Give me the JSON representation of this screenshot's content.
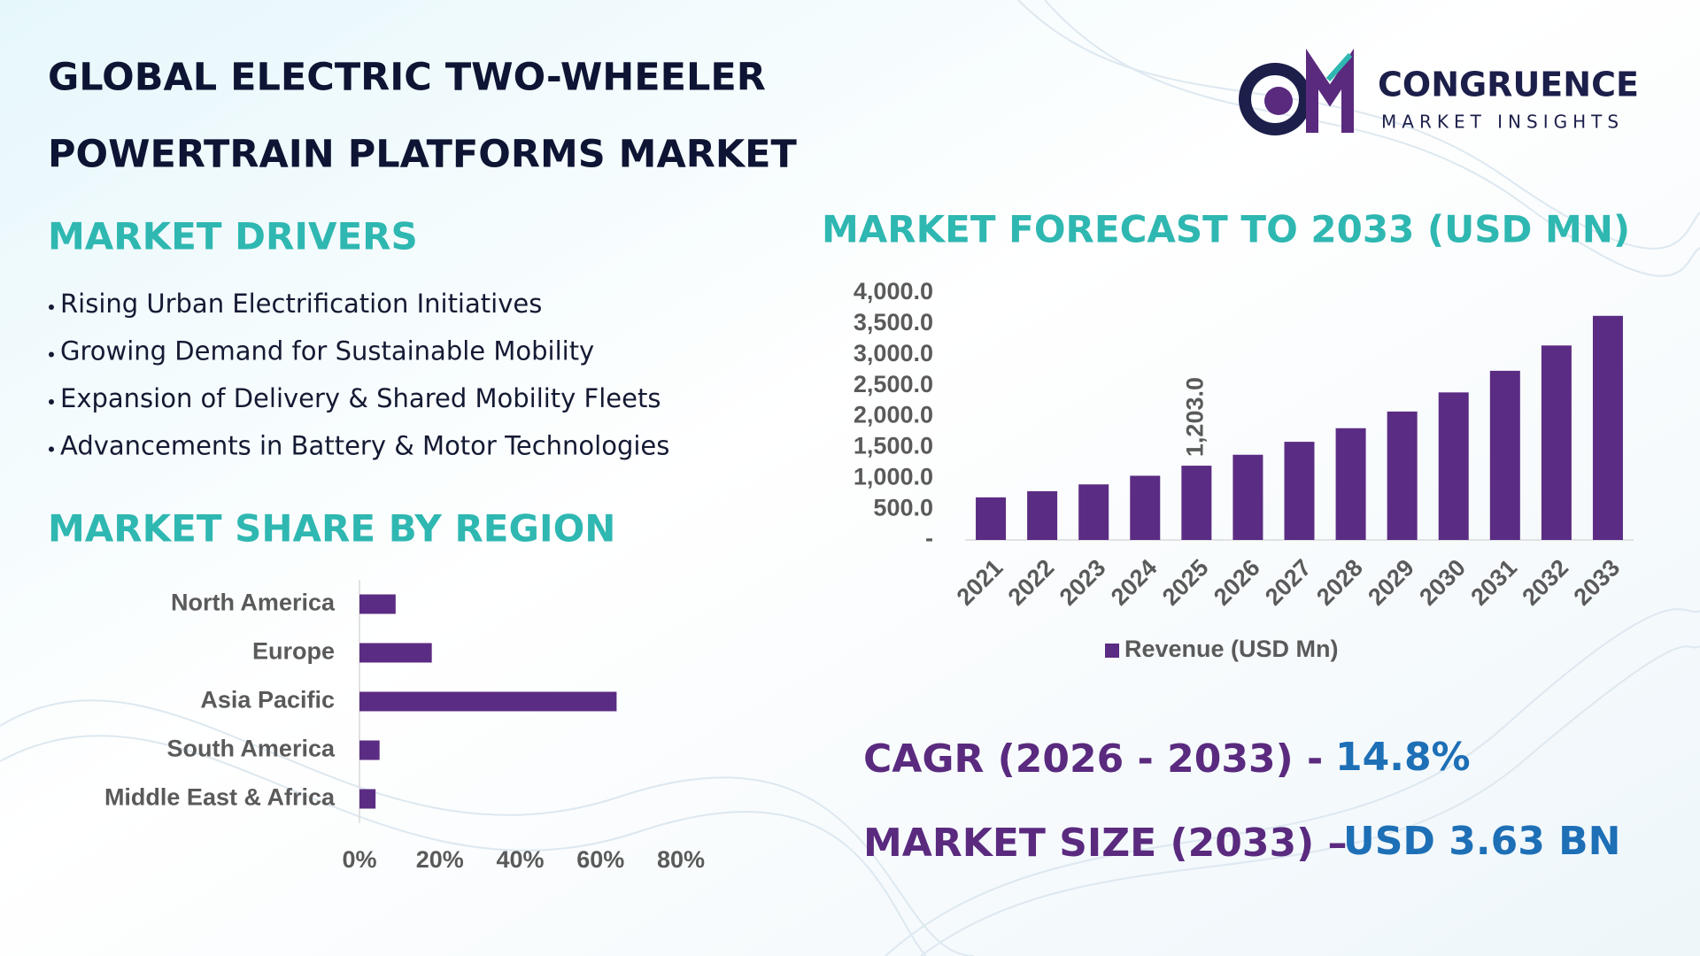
{
  "header": {
    "title": [
      "GLOBAL ELECTRIC TWO-WHEELER",
      "POWERTRAIN PLATFORMS MARKET"
    ]
  },
  "logo": {
    "name": "CONGRUENCE",
    "tagline": "MARKET INSIGHTS"
  },
  "drivers": {
    "title": "MARKET DRIVERS",
    "items": [
      "Rising Urban Electrification Initiatives",
      "Growing Demand for Sustainable Mobility",
      "Expansion of Delivery & Shared Mobility Fleets",
      "Advancements in Battery & Motor Technologies"
    ]
  },
  "kpis": [
    {
      "label": "CAGR (2026 - 2033) -",
      "value": "14.8%"
    },
    {
      "label": "MARKET SIZE (2033) –",
      "value": "USD 3.63 BN"
    }
  ],
  "chart_data": [
    {
      "type": "bar",
      "title": "MARKET FORECAST TO 2033 (USD MN)",
      "categories": [
        "2021",
        "2022",
        "2023",
        "2024",
        "2025",
        "2026",
        "2027",
        "2028",
        "2029",
        "2030",
        "2031",
        "2032",
        "2033"
      ],
      "series": [
        {
          "name": "Revenue (USD Mn)",
          "color": "#5b2c83",
          "values": [
            690,
            790,
            900,
            1040,
            1203,
            1380,
            1590,
            1810,
            2080,
            2390,
            2740,
            3150,
            3630
          ],
          "value_labels": [
            null,
            null,
            null,
            null,
            "1,203.0",
            null,
            null,
            null,
            null,
            null,
            null,
            null,
            null
          ]
        }
      ],
      "ylim": [
        0,
        4000
      ],
      "yticks": [
        {
          "value": 0,
          "label": "-"
        },
        {
          "value": 500,
          "label": "500.0"
        },
        {
          "value": 1000,
          "label": "1,000.0"
        },
        {
          "value": 1500,
          "label": "1,500.0"
        },
        {
          "value": 2000,
          "label": "2,000.0"
        },
        {
          "value": 2500,
          "label": "2,500.0"
        },
        {
          "value": 3000,
          "label": "3,000.0"
        },
        {
          "value": 3500,
          "label": "3,500.0"
        },
        {
          "value": 4000,
          "label": "4,000.0"
        }
      ],
      "grid": false,
      "legend": "bottom"
    },
    {
      "type": "barh",
      "title": "MARKET SHARE BY REGION",
      "categories": [
        "North America",
        "Europe",
        "Asia Pacific",
        "South America",
        "Middle East & Africa"
      ],
      "values": [
        9,
        18,
        64,
        5,
        4
      ],
      "color": "#5b2c83",
      "xlim": [
        0,
        80
      ],
      "xticks": [
        {
          "value": 0,
          "label": "0%"
        },
        {
          "value": 20,
          "label": "20%"
        },
        {
          "value": 40,
          "label": "40%"
        },
        {
          "value": 60,
          "label": "60%"
        },
        {
          "value": 80,
          "label": "80%"
        }
      ],
      "grid": false
    }
  ]
}
